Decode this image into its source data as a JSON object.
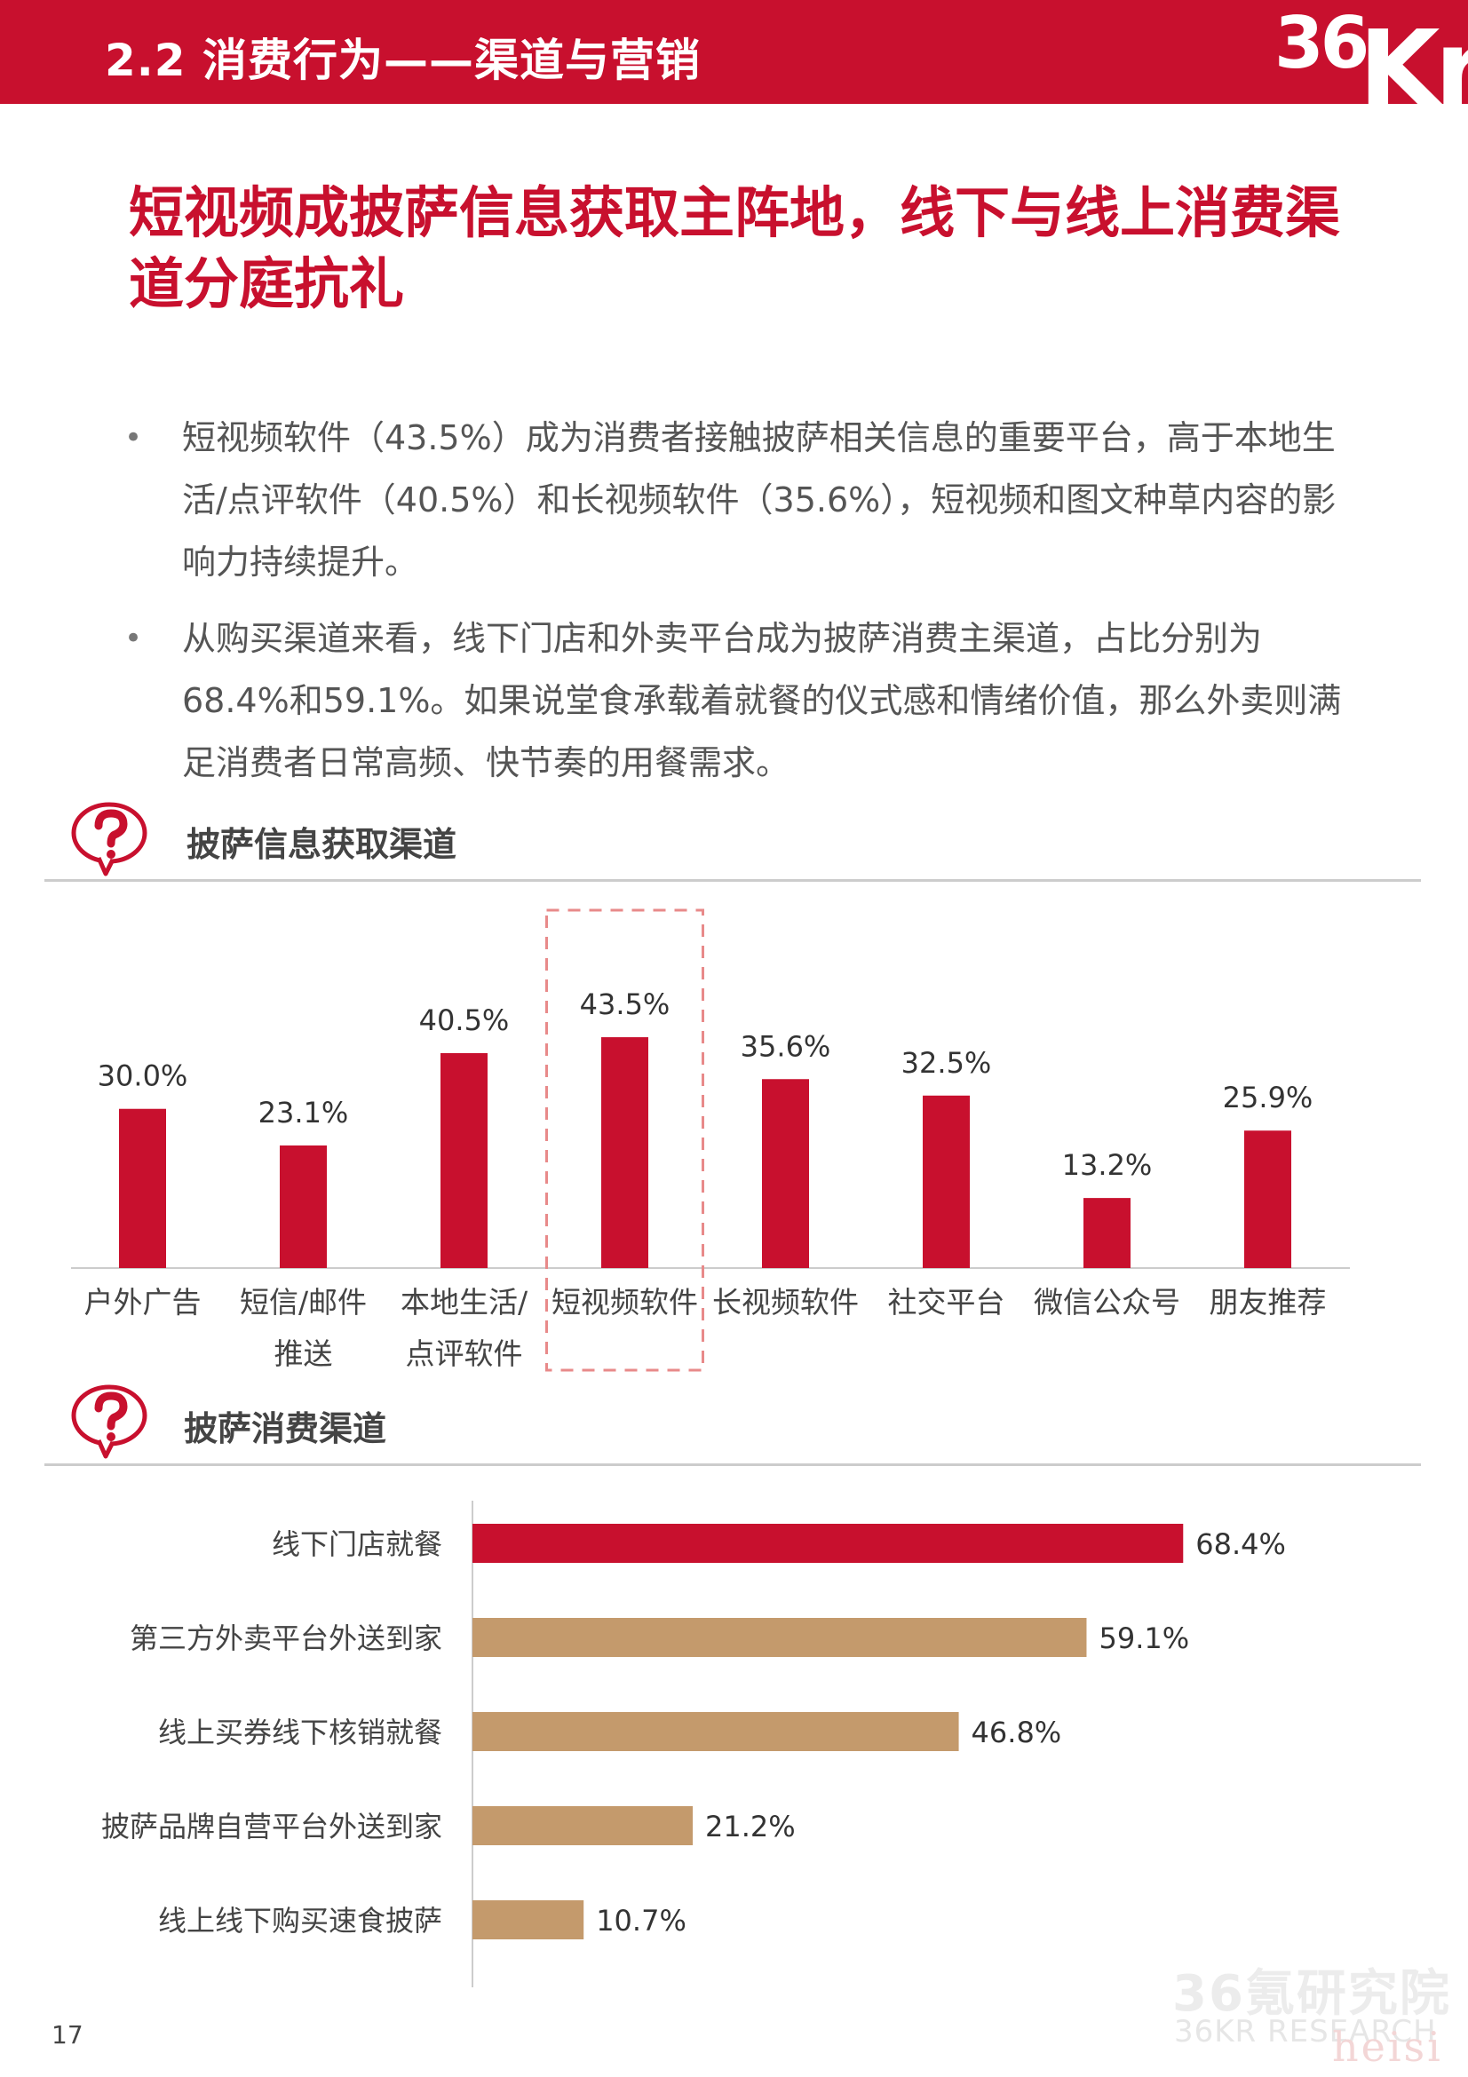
{
  "header": {
    "section_title": "2.2 消费行为——渠道与营销",
    "logo_number": "36",
    "logo_letters": "Kr"
  },
  "main_title": "短视频成披萨信息获取主阵地，线下与线上消费渠道分庭抗礼",
  "bullets": [
    "短视频软件（43.5%）成为消费者接触披萨相关信息的重要平台，高于本地生活/点评软件（40.5%）和长视频软件（35.6%），短视频和图文种草内容的影响力持续提升。",
    "从购买渠道来看，线下门店和外卖平台成为披萨消费主渠道，占比分别为68.4%和59.1%。如果说堂食承载着就餐的仪式感和情绪价值，那么外卖则满足消费者日常高频、快节奏的用餐需求。"
  ],
  "sections": {
    "info_channels": "披萨信息获取渠道",
    "consumption_channels": "披萨消费渠道"
  },
  "colors": {
    "brand_red": "#c8102e",
    "tan": "#c49a6c",
    "highlight_border": "#e88a8a"
  },
  "icons": {
    "section_icon": "question-bubble-icon"
  },
  "chart_data": [
    {
      "type": "bar",
      "title": "披萨信息获取渠道",
      "categories": [
        [
          "户外广告"
        ],
        [
          "短信/邮件",
          "推送"
        ],
        [
          "本地生活/",
          "点评软件"
        ],
        [
          "短视频软件"
        ],
        [
          "长视频软件"
        ],
        [
          "社交平台"
        ],
        [
          "微信公众号"
        ],
        [
          "朋友推荐"
        ]
      ],
      "values": [
        30.0,
        23.1,
        40.5,
        43.5,
        35.6,
        32.5,
        13.2,
        25.9
      ],
      "labels": [
        "30.0%",
        "23.1%",
        "40.5%",
        "43.5%",
        "35.6%",
        "32.5%",
        "13.2%",
        "25.9%"
      ],
      "highlight_index": 3,
      "color": "#c8102e",
      "ylim": [
        0,
        50
      ],
      "grid": false
    },
    {
      "type": "bar",
      "orientation": "horizontal",
      "title": "披萨消费渠道",
      "categories": [
        "线下门店就餐",
        "第三方外卖平台外送到家",
        "线上买券线下核销就餐",
        "披萨品牌自营平台外送到家",
        "线上线下购买速食披萨"
      ],
      "values": [
        68.4,
        59.1,
        46.8,
        21.2,
        10.7
      ],
      "labels": [
        "68.4%",
        "59.1%",
        "46.8%",
        "21.2%",
        "10.7%"
      ],
      "colors": [
        "#c8102e",
        "#c49a6c",
        "#c49a6c",
        "#c49a6c",
        "#c49a6c"
      ],
      "xlim": [
        0,
        80
      ],
      "grid": false
    }
  ],
  "footer": {
    "page_number": "17",
    "watermark_cn": "36氪研究院",
    "watermark_en": "36KR RESEARCH",
    "watermark_tag": "heisi"
  }
}
